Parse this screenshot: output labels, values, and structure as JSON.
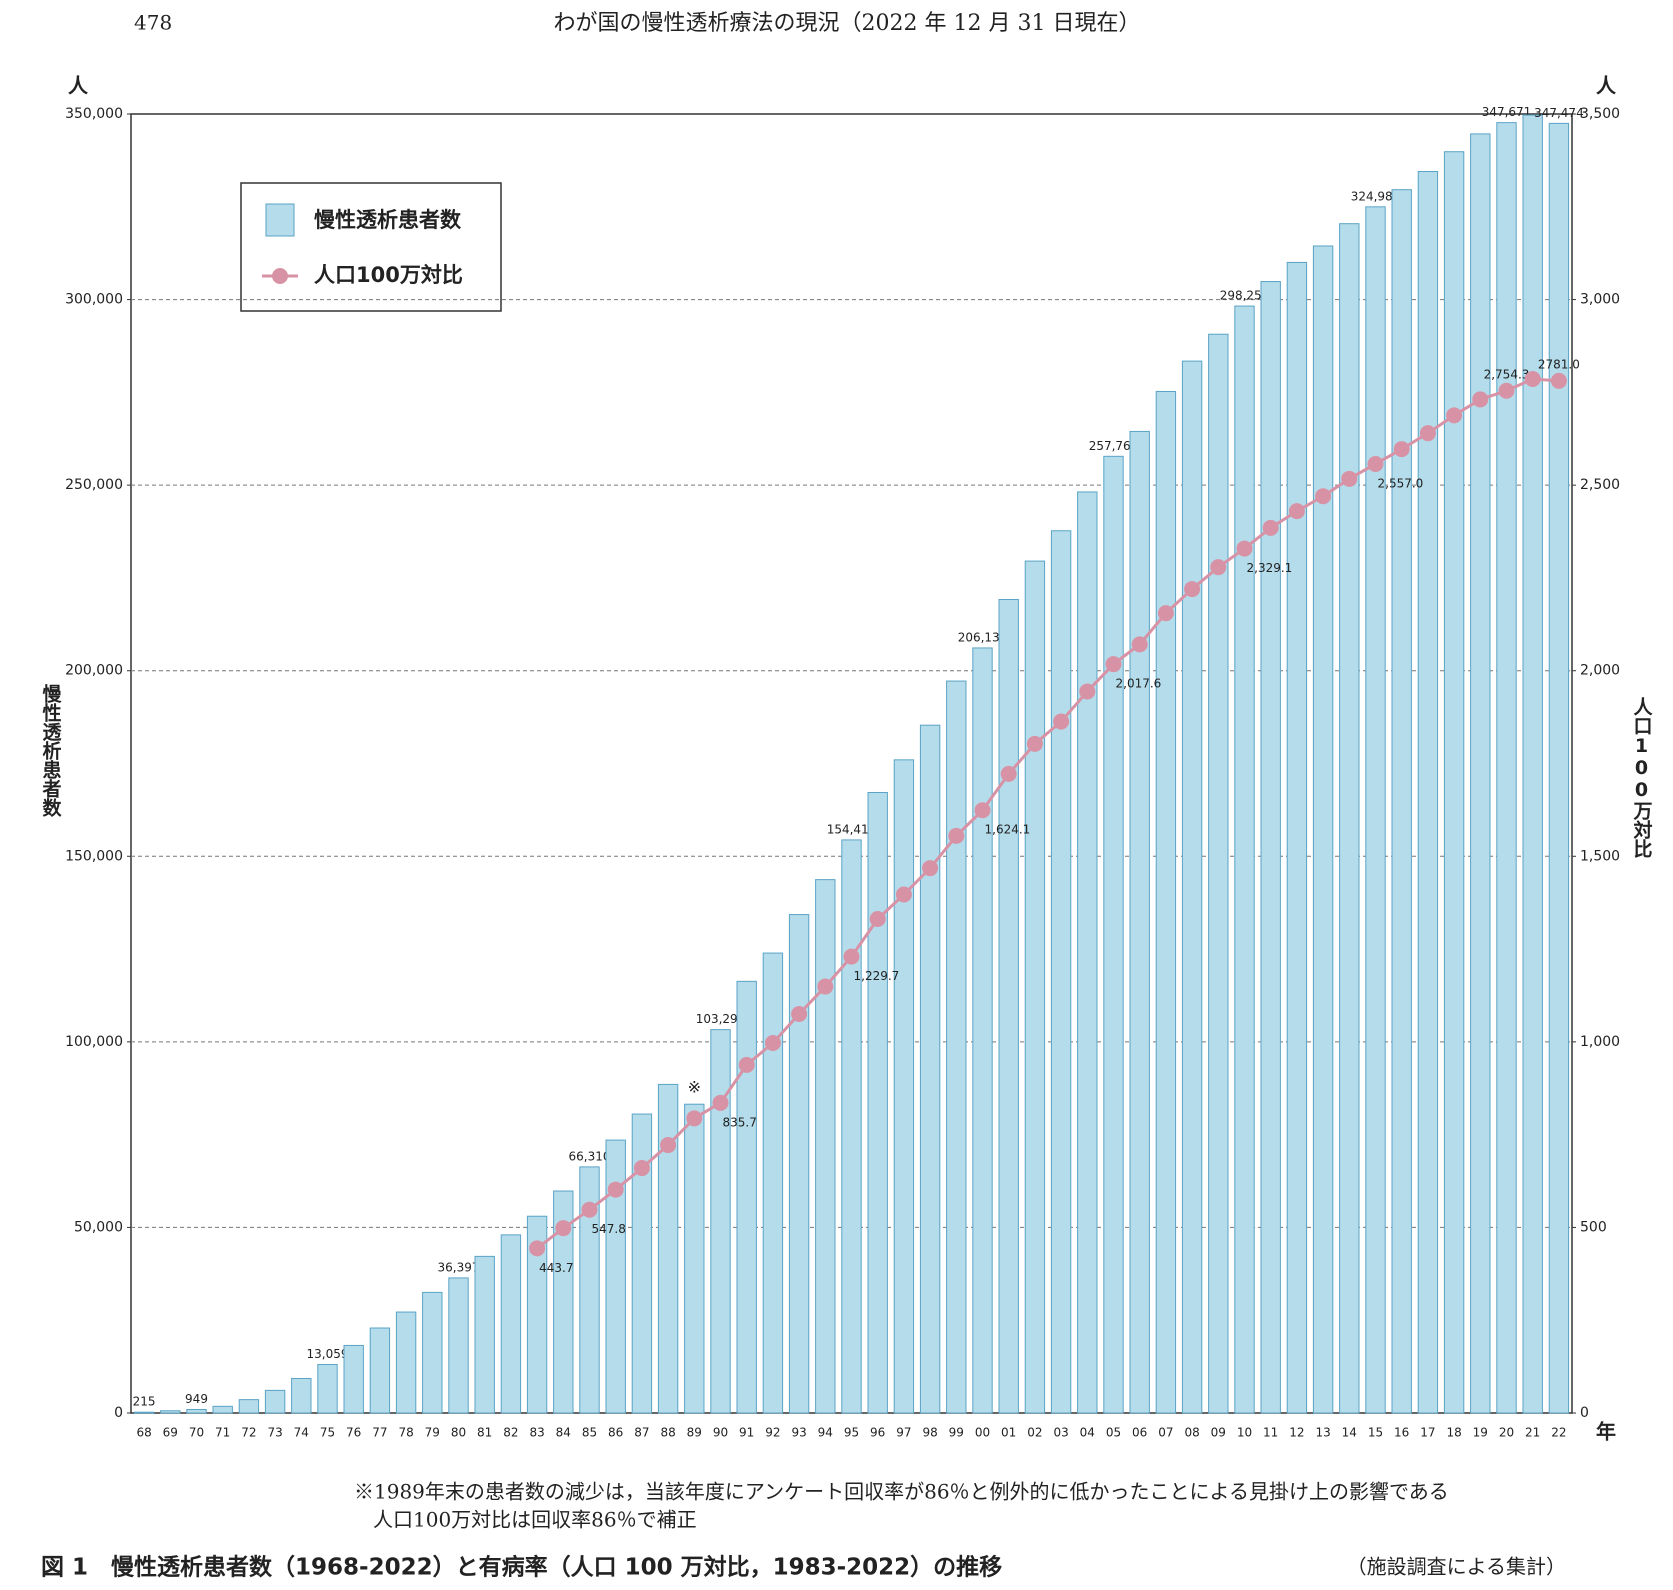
{
  "page_number": "478",
  "header": "わが国の慢性透析療法の現況（2022 年 12 月 31 日現在）",
  "chart_data": {
    "type": "bar_line",
    "categories": [
      "68",
      "69",
      "70",
      "71",
      "72",
      "73",
      "74",
      "75",
      "76",
      "77",
      "78",
      "79",
      "80",
      "81",
      "82",
      "83",
      "84",
      "85",
      "86",
      "87",
      "88",
      "89",
      "90",
      "91",
      "92",
      "93",
      "94",
      "95",
      "96",
      "97",
      "98",
      "99",
      "00",
      "01",
      "02",
      "03",
      "04",
      "05",
      "06",
      "07",
      "08",
      "09",
      "10",
      "11",
      "12",
      "13",
      "14",
      "15",
      "16",
      "17",
      "18",
      "19",
      "20",
      "21",
      "22"
    ],
    "series": [
      {
        "name": "慢性透析患者数",
        "color": "#b5dcea",
        "axis": "y",
        "values": [
          215,
          600,
          949,
          1800,
          3600,
          6100,
          9300,
          13059,
          18200,
          22900,
          27200,
          32500,
          36397,
          42200,
          48000,
          53017,
          59811,
          66310,
          73537,
          80553,
          88534,
          83200,
          103296,
          116303,
          123926,
          134298,
          143709,
          154413,
          167192,
          175988,
          185322,
          197213,
          206134,
          219183,
          229538,
          237710,
          248166,
          257765,
          264473,
          275242,
          283421,
          290661,
          298252,
          304856,
          310007,
          314438,
          320448,
          324986,
          329609,
          334505,
          339841,
          344640,
          347671,
          349700,
          347474
        ],
        "value_labels": [
          "215",
          null,
          "949",
          null,
          null,
          null,
          null,
          "13,059",
          null,
          null,
          null,
          null,
          "36,397",
          null,
          null,
          null,
          null,
          "66,310",
          null,
          null,
          null,
          null,
          "103,296",
          null,
          null,
          null,
          null,
          "154,413",
          null,
          null,
          null,
          null,
          "206,134",
          null,
          null,
          null,
          null,
          "257,765",
          null,
          null,
          null,
          null,
          "298,252",
          null,
          null,
          null,
          null,
          "324,986",
          null,
          null,
          null,
          null,
          "347,671",
          null,
          "347,474"
        ]
      },
      {
        "name": "人口100万対比",
        "color": "#d892a6",
        "axis": "y2",
        "values": [
          null,
          null,
          null,
          null,
          null,
          null,
          null,
          null,
          null,
          null,
          null,
          null,
          null,
          null,
          null,
          443.7,
          498,
          547.8,
          602,
          660,
          722,
          794,
          835.7,
          938,
          997,
          1075,
          1149,
          1229.7,
          1331,
          1397,
          1468,
          1555,
          1624.1,
          1722,
          1803,
          1863,
          1944,
          2017.6,
          2071,
          2155,
          2220,
          2279,
          2329.1,
          2385,
          2430,
          2470,
          2517,
          2557.0,
          2597,
          2640,
          2688,
          2731,
          2754.3,
          2786,
          2781.0
        ],
        "value_labels": [
          null,
          null,
          null,
          null,
          null,
          null,
          null,
          null,
          null,
          null,
          null,
          null,
          null,
          null,
          null,
          "443.7",
          null,
          "547.8",
          null,
          null,
          null,
          null,
          "835.7",
          null,
          null,
          null,
          null,
          "1,229.7",
          null,
          null,
          null,
          null,
          "1,624.1",
          null,
          null,
          null,
          null,
          "2,017.6",
          null,
          null,
          null,
          null,
          "2,329.1",
          null,
          null,
          null,
          null,
          "2,557.0",
          null,
          null,
          null,
          null,
          "2,754.3",
          null,
          "2781.0"
        ]
      }
    ],
    "ylim": [
      0,
      350000
    ],
    "yticks": [
      0,
      {
        "value": 50000,
        "label": "50,000"
      },
      {
        "value": 100000,
        "label": "100,000"
      },
      {
        "value": 150000,
        "label": "150,000"
      },
      {
        "value": 200000,
        "label": "200,000"
      },
      {
        "value": 250000,
        "label": "250,000"
      },
      {
        "value": 300000,
        "label": "300,000"
      },
      {
        "value": 350000,
        "label": "350,000"
      }
    ],
    "y2lim": [
      0,
      3500
    ],
    "y2ticks": [
      0,
      500,
      {
        "value": 1000,
        "label": "1,000"
      },
      {
        "value": 1500,
        "label": "1,500"
      },
      {
        "value": 2000,
        "label": "2,000"
      },
      {
        "value": 2500,
        "label": "2,500"
      },
      {
        "value": 3000,
        "label": "3,000"
      },
      {
        "value": 3500,
        "label": "3,500"
      }
    ],
    "y_unit": "人",
    "y2_unit": "人",
    "x_unit": "年",
    "ylabel": "慢性透析患者数",
    "y2label": "人口100万対比",
    "grid": true,
    "legend": "upper left",
    "annotations": [
      {
        "text": "※",
        "x": "89"
      }
    ]
  },
  "footnote": [
    "※1989年末の患者数の減少は，当該年度にアンケート回収率が86％と例外的に低かったことによる見掛け上の影響である",
    "人口100万対比は回収率86％で補正"
  ],
  "caption": "図 1　慢性透析患者数（1968-2022）と有病率（人口 100 万対比，1983-2022）の推移",
  "source": "（施設調査による集計）"
}
